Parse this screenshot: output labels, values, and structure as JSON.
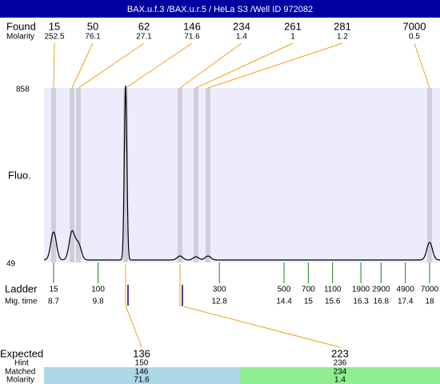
{
  "header": {
    "title": "BAX.u.f.3 /BAX.u.r.5 / HeLa S3 /Well ID 972082"
  },
  "labels": {
    "found": "Found",
    "found_molarity": "Molarity",
    "fluo": "Fluo.",
    "ladder": "Ladder",
    "mig_time": "Mig. time",
    "expected": "Expected",
    "hint": "Hint",
    "matched": "Matched",
    "expected_molarity": "Molarity"
  },
  "y_axis": {
    "max": 858,
    "min": 49
  },
  "found": [
    {
      "size": 15,
      "molarity": 252.5
    },
    {
      "size": 50,
      "molarity": 76.1
    },
    {
      "size": 62,
      "molarity": 27.1
    },
    {
      "size": 146,
      "molarity": 71.6
    },
    {
      "size": 234,
      "molarity": 1.4
    },
    {
      "size": 261,
      "molarity": 1
    },
    {
      "size": 281,
      "molarity": 1.2
    },
    {
      "size": 7000,
      "molarity": 0.5
    }
  ],
  "ladder": [
    {
      "size": 15,
      "mig_time": 8.7
    },
    {
      "size": 100,
      "mig_time": 9.8
    },
    {
      "size": 300,
      "mig_time": 12.8
    },
    {
      "size": 500,
      "mig_time": 14.4
    },
    {
      "size": 700,
      "mig_time": 15
    },
    {
      "size": 1100,
      "mig_time": 15.6
    },
    {
      "size": 1900,
      "mig_time": 16.3
    },
    {
      "size": 2900,
      "mig_time": 16.8
    },
    {
      "size": 4900,
      "mig_time": 17.4
    },
    {
      "size": 7000,
      "mig_time": 18
    }
  ],
  "expected": [
    {
      "size": 136,
      "hint": 150,
      "matched": 146,
      "molarity": 71.6
    },
    {
      "size": 223,
      "hint": 236,
      "matched": 234,
      "molarity": 1.4
    }
  ]
}
